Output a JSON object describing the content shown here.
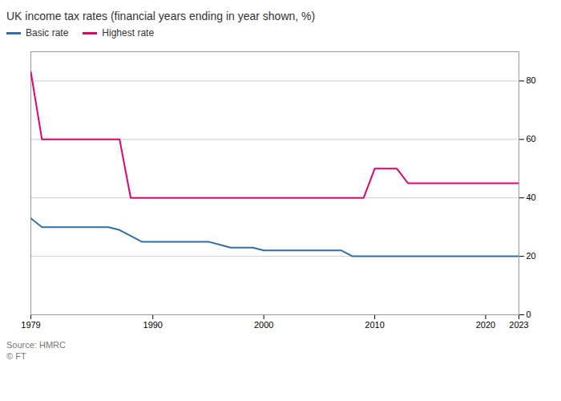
{
  "chart_data": {
    "type": "line",
    "title": "UK income tax rates (financial years ending in year shown, %)",
    "annotations": [
      "Source: HMRC",
      "© FT"
    ],
    "x": [
      1979,
      1980,
      1981,
      1982,
      1983,
      1984,
      1985,
      1986,
      1987,
      1988,
      1989,
      1990,
      1991,
      1992,
      1993,
      1994,
      1995,
      1996,
      1997,
      1998,
      1999,
      2000,
      2001,
      2002,
      2003,
      2004,
      2005,
      2006,
      2007,
      2008,
      2009,
      2010,
      2011,
      2012,
      2013,
      2014,
      2015,
      2016,
      2017,
      2018,
      2019,
      2020,
      2021,
      2022,
      2023
    ],
    "series": [
      {
        "name": "Basic rate",
        "color": "#2f6fa8",
        "values": [
          33,
          30,
          30,
          30,
          30,
          30,
          30,
          30,
          29,
          27,
          25,
          25,
          25,
          25,
          25,
          25,
          25,
          24,
          23,
          23,
          23,
          22,
          22,
          22,
          22,
          22,
          22,
          22,
          22,
          20,
          20,
          20,
          20,
          20,
          20,
          20,
          20,
          20,
          20,
          20,
          20,
          20,
          20,
          20,
          20
        ]
      },
      {
        "name": "Highest rate",
        "color": "#e6006e",
        "values": [
          83,
          60,
          60,
          60,
          60,
          60,
          60,
          60,
          60,
          40,
          40,
          40,
          40,
          40,
          40,
          40,
          40,
          40,
          40,
          40,
          40,
          40,
          40,
          40,
          40,
          40,
          40,
          40,
          40,
          40,
          40,
          50,
          50,
          50,
          45,
          45,
          45,
          45,
          45,
          45,
          45,
          45,
          45,
          45,
          45
        ]
      }
    ],
    "xlim": [
      1979,
      2023
    ],
    "ylim": [
      0,
      90
    ],
    "xticks": [
      1979,
      1990,
      2000,
      2010,
      2020,
      2023
    ],
    "yticks": [
      0,
      20,
      40,
      60,
      80
    ],
    "grid": true,
    "legend": "upper left"
  }
}
